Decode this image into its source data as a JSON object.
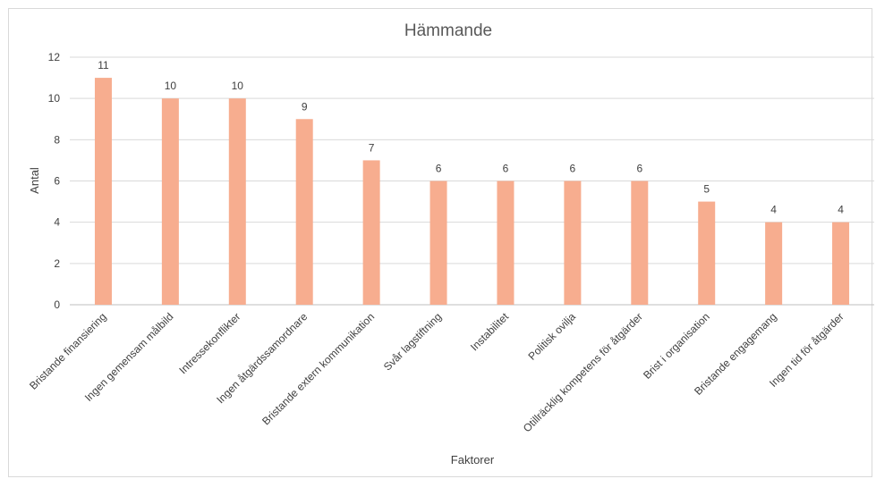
{
  "chart_data": {
    "type": "bar",
    "title": "Hämmande",
    "xlabel": "Faktorer",
    "ylabel": "Antal",
    "ylim": [
      0,
      12
    ],
    "yticks": [
      0,
      2,
      4,
      6,
      8,
      10,
      12
    ],
    "grid": true,
    "legend": "none",
    "bar_color": "#f7ad8f",
    "categories": [
      "Bristande finansiering",
      "Ingen gemensam målbild",
      "Intressekonflikter",
      "Ingen åtgärdssamordnare",
      "Bristande extern kommunikation",
      "Svår lagstiftning",
      "Instabilitet",
      "Politisk ovilja",
      "Otillräcklig kompetens för åtgärder",
      "Brist i organisation",
      "Bristande engagemang",
      "Ingen tid för åtgärder"
    ],
    "values": [
      11,
      10,
      10,
      9,
      7,
      6,
      6,
      6,
      6,
      5,
      4,
      4
    ]
  }
}
